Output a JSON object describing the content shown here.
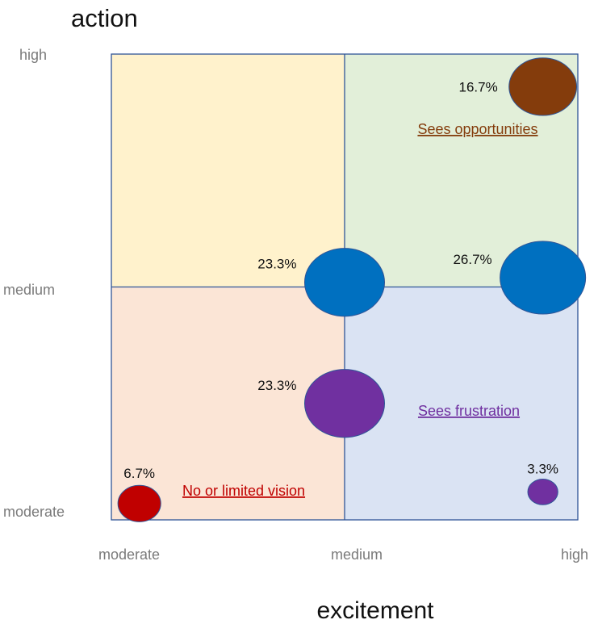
{
  "chart_data": {
    "type": "scatter",
    "xlabel": "excitement",
    "ylabel": "action",
    "x_ticks": [
      "moderate",
      "medium",
      "high"
    ],
    "y_ticks": [
      "high",
      "medium",
      "moderate"
    ],
    "xlim": [
      0,
      2
    ],
    "ylim": [
      0,
      2
    ],
    "grid": false,
    "quadrants": [
      {
        "name": "top-left",
        "color": "#fff2cc",
        "label": "",
        "label_color": ""
      },
      {
        "name": "top-right",
        "color": "#e2efd9",
        "label": "Sees opportunities",
        "label_color": "#843c0c"
      },
      {
        "name": "bottom-left",
        "color": "#fbe5d6",
        "label": "No or limited vision",
        "label_color": "#c00000"
      },
      {
        "name": "bottom-right",
        "color": "#dae3f3",
        "label": "Sees frustration",
        "label_color": "#7030a0"
      }
    ],
    "points": [
      {
        "x": 1.85,
        "y": 1.86,
        "value": 16.7,
        "label": "16.7%",
        "color": "#843c0c"
      },
      {
        "x": 1.0,
        "y": 1.02,
        "value": 23.3,
        "label": "23.3%",
        "color": "#0070c0"
      },
      {
        "x": 1.85,
        "y": 1.04,
        "value": 26.7,
        "label": "26.7%",
        "color": "#0070c0"
      },
      {
        "x": 1.0,
        "y": 0.5,
        "value": 23.3,
        "label": "23.3%",
        "color": "#7030a0"
      },
      {
        "x": 0.12,
        "y": 0.07,
        "value": 6.7,
        "label": "6.7%",
        "color": "#c00000"
      },
      {
        "x": 1.85,
        "y": 0.12,
        "value": 3.3,
        "label": "3.3%",
        "color": "#7030a0"
      }
    ],
    "border_color": "#2f5597",
    "bubble_border_color": "#2f5597"
  }
}
